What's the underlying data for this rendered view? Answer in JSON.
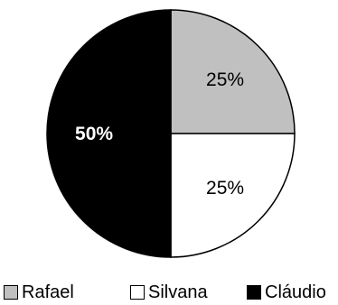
{
  "chart_data": {
    "type": "pie",
    "title": "",
    "slices": [
      {
        "label": "Rafael",
        "value": 25,
        "display": "25%",
        "color": "#c0c0c0",
        "text_color": "#000000",
        "text_weight": "normal"
      },
      {
        "label": "Silvana",
        "value": 25,
        "display": "25%",
        "color": "#ffffff",
        "text_color": "#000000",
        "text_weight": "normal"
      },
      {
        "label": "Cláudio",
        "value": 50,
        "display": "50%",
        "color": "#000000",
        "text_color": "#ffffff",
        "text_weight": "bold"
      }
    ],
    "start_angle": "12 o'clock",
    "direction": "clockwise",
    "legend_position": "bottom"
  },
  "legend": {
    "items": [
      {
        "label": "Rafael",
        "color": "#c0c0c0"
      },
      {
        "label": "Silvana",
        "color": "#ffffff"
      },
      {
        "label": "Cláudio",
        "color": "#000000"
      }
    ]
  }
}
